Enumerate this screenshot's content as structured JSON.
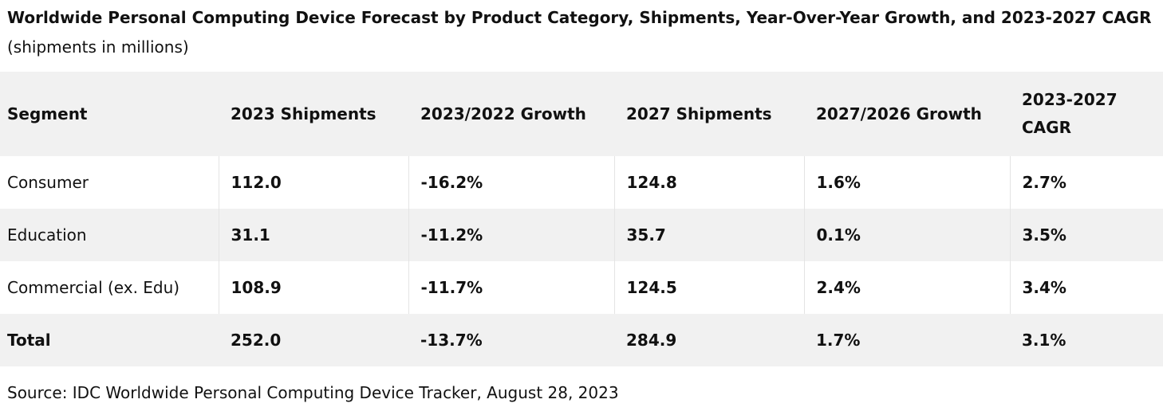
{
  "caption": {
    "title": "Worldwide Personal Computing Device Forecast by Product Category, Shipments, Year-Over-Year Growth, and 2023-2027 CAGR",
    "subtitle": "(shipments in millions)"
  },
  "table": {
    "headers": [
      "Segment",
      "2023 Shipments",
      "2023/2022 Growth",
      "2027 Shipments",
      "2027/2026 Growth",
      "2023-2027 CAGR"
    ],
    "rows": [
      {
        "segment": "Consumer",
        "shipments_2023": "112.0",
        "growth_2023": "-16.2%",
        "shipments_2027": "124.8",
        "growth_2027": "1.6%",
        "cagr": "2.7%"
      },
      {
        "segment": "Education",
        "shipments_2023": "31.1",
        "growth_2023": "-11.2%",
        "shipments_2027": "35.7",
        "growth_2027": "0.1%",
        "cagr": "3.5%"
      },
      {
        "segment": "Commercial (ex. Edu)",
        "shipments_2023": "108.9",
        "growth_2023": "-11.7%",
        "shipments_2027": "124.5",
        "growth_2027": "2.4%",
        "cagr": "3.4%"
      },
      {
        "segment": "Total",
        "shipments_2023": "252.0",
        "growth_2023": "-13.7%",
        "shipments_2027": "284.9",
        "growth_2027": "1.7%",
        "cagr": "3.1%"
      }
    ]
  },
  "source": "Source: IDC Worldwide Personal Computing Device Tracker, August 28, 2023"
}
